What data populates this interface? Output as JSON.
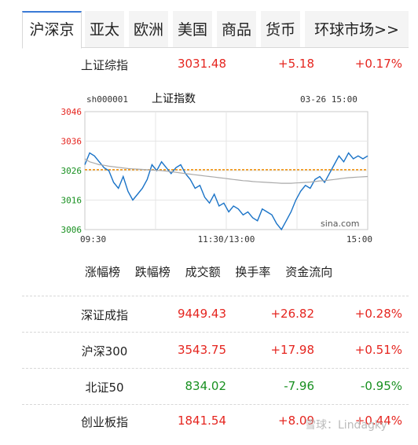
{
  "tabs": [
    "沪深京",
    "亚太",
    "欧洲",
    "美国",
    "商品",
    "货币",
    "环球市场>>"
  ],
  "top_index": {
    "name": "上证综指",
    "price": "3031.48",
    "change": "+5.18",
    "percent": "+0.17%"
  },
  "chart_header": {
    "code": "sh000001",
    "name": "上证指数",
    "datetime": "03-26 15:00"
  },
  "chart_brand": "sina.com",
  "chart_data": {
    "type": "line",
    "title": "上证指数",
    "y_ticks": [
      "3046",
      "3036",
      "3026",
      "3016",
      "3006"
    ],
    "x_ticks": [
      "09:30",
      "11:30/13:00",
      "15:00"
    ],
    "ylim": [
      3006,
      3046
    ],
    "reference_line": 3026.3,
    "series": [
      {
        "values": [
          3028,
          3032,
          3031,
          3029,
          3027,
          3026,
          3022,
          3020,
          3024,
          3019,
          3016,
          3018,
          3020,
          3023,
          3028,
          3026,
          3029,
          3027,
          3025,
          3027,
          3028,
          3025,
          3023,
          3020,
          3021,
          3017,
          3015,
          3018,
          3014,
          3015,
          3012,
          3014,
          3013,
          3011,
          3012,
          3010,
          3009,
          3013,
          3012,
          3011,
          3008,
          3006,
          3009,
          3012,
          3016,
          3019,
          3021,
          3020,
          3023,
          3024,
          3022,
          3025,
          3028,
          3031,
          3029,
          3032,
          3030,
          3031,
          3030,
          3031
        ]
      },
      {
        "values": [
          3030,
          3029,
          3028.5,
          3028,
          3027.8,
          3027.5,
          3027.3,
          3027.1,
          3026.9,
          3026.7,
          3026.6,
          3026.5,
          3026.4,
          3026.3,
          3026.2,
          3026.1,
          3026.0,
          3025.8,
          3025.6,
          3025.4,
          3025.2,
          3025.0,
          3024.8,
          3024.6,
          3024.4,
          3024.2,
          3024.0,
          3023.8,
          3023.6,
          3023.4,
          3023.2,
          3023.0,
          3022.8,
          3022.6,
          3022.5,
          3022.3,
          3022.2,
          3022.1,
          3022.0,
          3021.9,
          3021.8,
          3021.7,
          3021.7,
          3021.7,
          3021.8,
          3021.9,
          3022.0,
          3022.1,
          3022.3,
          3022.5,
          3022.6,
          3022.8,
          3023.0,
          3023.2,
          3023.4,
          3023.6,
          3023.7,
          3023.8,
          3023.9,
          3024.0
        ]
      }
    ]
  },
  "rank_links": [
    "涨幅榜",
    "跌幅榜",
    "成交额",
    "换手率",
    "资金流向"
  ],
  "indices": [
    {
      "name": "深证成指",
      "price": "9449.43",
      "change": "+26.82",
      "percent": "+0.28%",
      "dir": "up"
    },
    {
      "name": "沪深300",
      "price": "3543.75",
      "change": "+17.98",
      "percent": "+0.51%",
      "dir": "up"
    },
    {
      "name": "北证50",
      "price": "834.02",
      "change": "-7.96",
      "percent": "-0.95%",
      "dir": "down"
    },
    {
      "name": "创业板指",
      "price": "1841.54",
      "change": "+8.09",
      "percent": "+0.44%",
      "dir": "up"
    }
  ],
  "watermark": "雪球：Lindagky",
  "colors": {
    "up": "#e5251f",
    "down": "#189020",
    "price_line": "#1a73c7",
    "avg_line": "#aaaaaa",
    "ref_line": "#f08c00"
  }
}
